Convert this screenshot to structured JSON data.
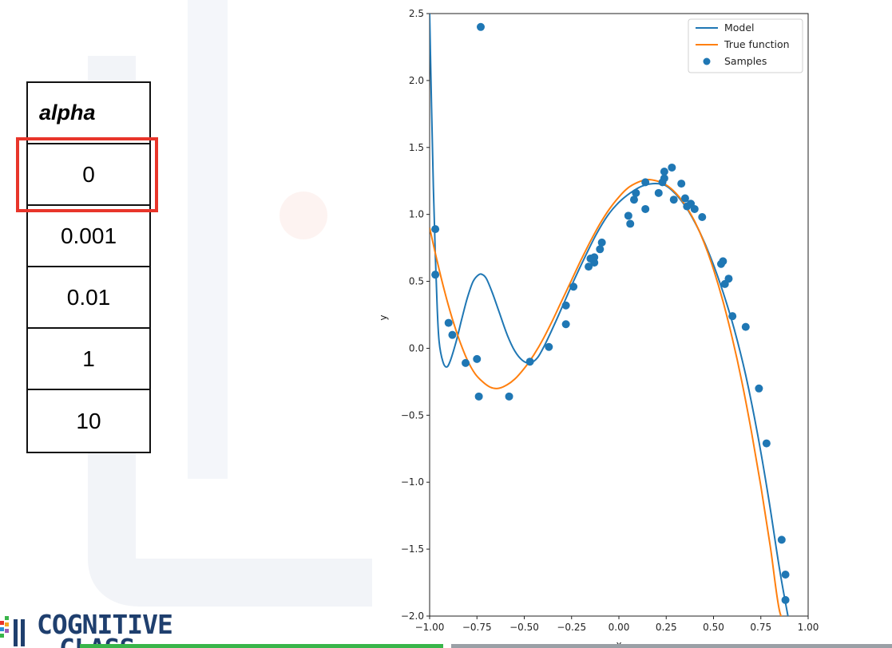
{
  "table": {
    "header": "alpha",
    "values": [
      "0",
      "0.001",
      "0.01",
      "1",
      "10"
    ],
    "highlighted_index": 0,
    "highlight_color": "#e8352a"
  },
  "logo": {
    "line1": "COGNITIVE",
    "line2": "CLASS",
    "color": "#1f3f6e"
  },
  "chart_data": {
    "type": "line",
    "xlabel": "x",
    "ylabel": "y",
    "xlim": [
      -1.0,
      1.0
    ],
    "ylim": [
      -2.0,
      2.5
    ],
    "xticks": [
      "−1.00",
      "−0.75",
      "−0.50",
      "−0.25",
      "0.00",
      "0.25",
      "0.50",
      "0.75",
      "1.00"
    ],
    "yticks": [
      "−2.0",
      "−1.5",
      "−1.0",
      "−0.5",
      "0.0",
      "0.5",
      "1.0",
      "1.5",
      "2.0",
      "2.5"
    ],
    "grid": false,
    "legend_position": "top-right",
    "legend": [
      "Model",
      "True function",
      "Samples"
    ],
    "colors": {
      "model": "#1f77b4",
      "true_function": "#ff7f0e",
      "samples": "#1f77b4"
    },
    "series": [
      {
        "name": "Model",
        "x": [
          -1.0,
          -0.99,
          -0.98,
          -0.97,
          -0.96,
          -0.95,
          -0.93,
          -0.91,
          -0.89,
          -0.86,
          -0.83,
          -0.8,
          -0.77,
          -0.74,
          -0.72,
          -0.7,
          -0.67,
          -0.63,
          -0.59,
          -0.55,
          -0.51,
          -0.47,
          -0.43,
          -0.39,
          -0.34,
          -0.29,
          -0.24,
          -0.18,
          -0.12,
          -0.06,
          0.0,
          0.06,
          0.12,
          0.18,
          0.24,
          0.28,
          0.32,
          0.37,
          0.43,
          0.49,
          0.55,
          0.61,
          0.67,
          0.73,
          0.79,
          0.85,
          0.9
        ],
        "y": [
          2.5,
          1.8,
          1.2,
          0.7,
          0.3,
          0.05,
          -0.1,
          -0.14,
          -0.09,
          0.05,
          0.22,
          0.38,
          0.5,
          0.55,
          0.55,
          0.52,
          0.42,
          0.26,
          0.1,
          -0.02,
          -0.09,
          -0.11,
          -0.07,
          0.03,
          0.18,
          0.34,
          0.5,
          0.68,
          0.85,
          0.99,
          1.09,
          1.16,
          1.21,
          1.23,
          1.22,
          1.18,
          1.12,
          1.02,
          0.86,
          0.66,
          0.42,
          0.14,
          -0.2,
          -0.62,
          -1.11,
          -1.66,
          -2.05
        ]
      },
      {
        "name": "True function",
        "x": [
          -1.0,
          -0.96,
          -0.92,
          -0.88,
          -0.84,
          -0.8,
          -0.76,
          -0.72,
          -0.68,
          -0.64,
          -0.6,
          -0.55,
          -0.5,
          -0.45,
          -0.4,
          -0.35,
          -0.3,
          -0.25,
          -0.2,
          -0.15,
          -0.1,
          -0.05,
          0.0,
          0.05,
          0.1,
          0.15,
          0.2,
          0.25,
          0.3,
          0.35,
          0.4,
          0.45,
          0.5,
          0.55,
          0.6,
          0.65,
          0.7,
          0.75,
          0.8,
          0.85,
          0.9
        ],
        "y": [
          0.9,
          0.65,
          0.42,
          0.22,
          0.05,
          -0.09,
          -0.19,
          -0.25,
          -0.29,
          -0.3,
          -0.28,
          -0.23,
          -0.15,
          -0.05,
          0.07,
          0.21,
          0.36,
          0.51,
          0.66,
          0.8,
          0.93,
          1.04,
          1.13,
          1.2,
          1.24,
          1.26,
          1.25,
          1.22,
          1.16,
          1.07,
          0.95,
          0.79,
          0.59,
          0.35,
          0.07,
          -0.25,
          -0.62,
          -1.03,
          -1.48,
          -1.97,
          -2.05
        ]
      }
    ],
    "samples": {
      "name": "Samples",
      "x": [
        -0.97,
        -0.97,
        -0.73,
        -0.9,
        -0.88,
        -0.81,
        -0.75,
        -0.74,
        -0.58,
        -0.47,
        -0.37,
        -0.28,
        -0.28,
        -0.24,
        -0.16,
        -0.15,
        -0.13,
        -0.13,
        -0.1,
        -0.09,
        0.05,
        0.06,
        0.08,
        0.09,
        0.14,
        0.14,
        0.21,
        0.23,
        0.24,
        0.24,
        0.28,
        0.29,
        0.33,
        0.35,
        0.36,
        0.38,
        0.4,
        0.44,
        0.54,
        0.55,
        0.56,
        0.58,
        0.6,
        0.67,
        0.74,
        0.78,
        0.86,
        0.88,
        0.88
      ],
      "y": [
        0.89,
        0.55,
        2.4,
        0.19,
        0.1,
        -0.11,
        -0.08,
        -0.36,
        -0.36,
        -0.1,
        0.01,
        0.18,
        0.32,
        0.46,
        0.61,
        0.67,
        0.64,
        0.68,
        0.74,
        0.79,
        0.99,
        0.93,
        1.11,
        1.16,
        1.04,
        1.24,
        1.16,
        1.24,
        1.27,
        1.32,
        1.35,
        1.11,
        1.23,
        1.12,
        1.06,
        1.08,
        1.04,
        0.98,
        0.63,
        0.65,
        0.48,
        0.52,
        0.24,
        0.16,
        -0.3,
        -0.71,
        -1.43,
        -1.69,
        -1.88
      ]
    }
  }
}
